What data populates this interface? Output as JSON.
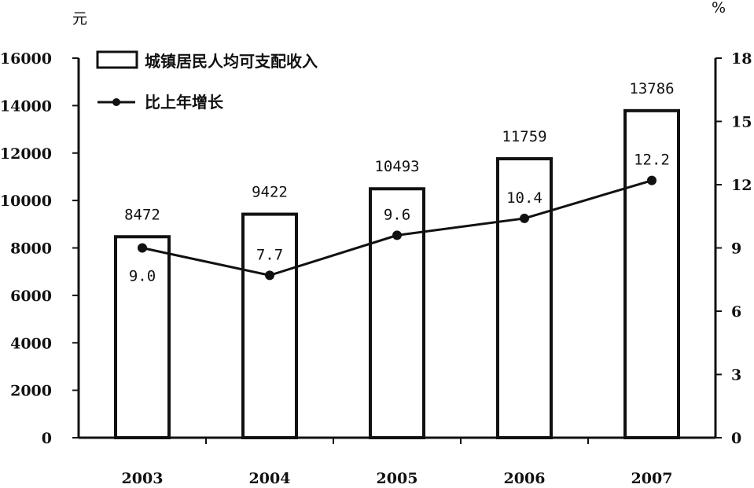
{
  "chart_data": {
    "type": "bar",
    "categories": [
      "2003",
      "2004",
      "2005",
      "2006",
      "2007"
    ],
    "series": [
      {
        "name": "城镇居民人均可支配收入",
        "type": "bar",
        "axis": "left",
        "values": [
          8472,
          9422,
          10493,
          11759,
          13786
        ],
        "labels": [
          "8472",
          "9422",
          "10493",
          "11759",
          "13786"
        ]
      },
      {
        "name": "比上年增长",
        "type": "line",
        "axis": "right",
        "values": [
          9.0,
          7.7,
          9.6,
          10.4,
          12.2
        ],
        "labels": [
          "9.0",
          "7.7",
          "9.6",
          "10.4",
          "12.2"
        ]
      }
    ],
    "left_unit": "元",
    "right_unit": "%",
    "ylim_left": [
      0,
      16000
    ],
    "ylim_right": [
      0,
      18
    ],
    "yticks_left": [
      "0",
      "2000",
      "4000",
      "6000",
      "8000",
      "10000",
      "12000",
      "14000",
      "16000"
    ],
    "yticks_right": [
      "0",
      "3",
      "6",
      "9",
      "12",
      "15",
      "18"
    ],
    "legend_position": "top-left",
    "grid": false,
    "colors": {
      "bar_fill": "#ffffff",
      "bar_stroke": "#111111",
      "line": "#111111",
      "marker": "#111111"
    }
  }
}
